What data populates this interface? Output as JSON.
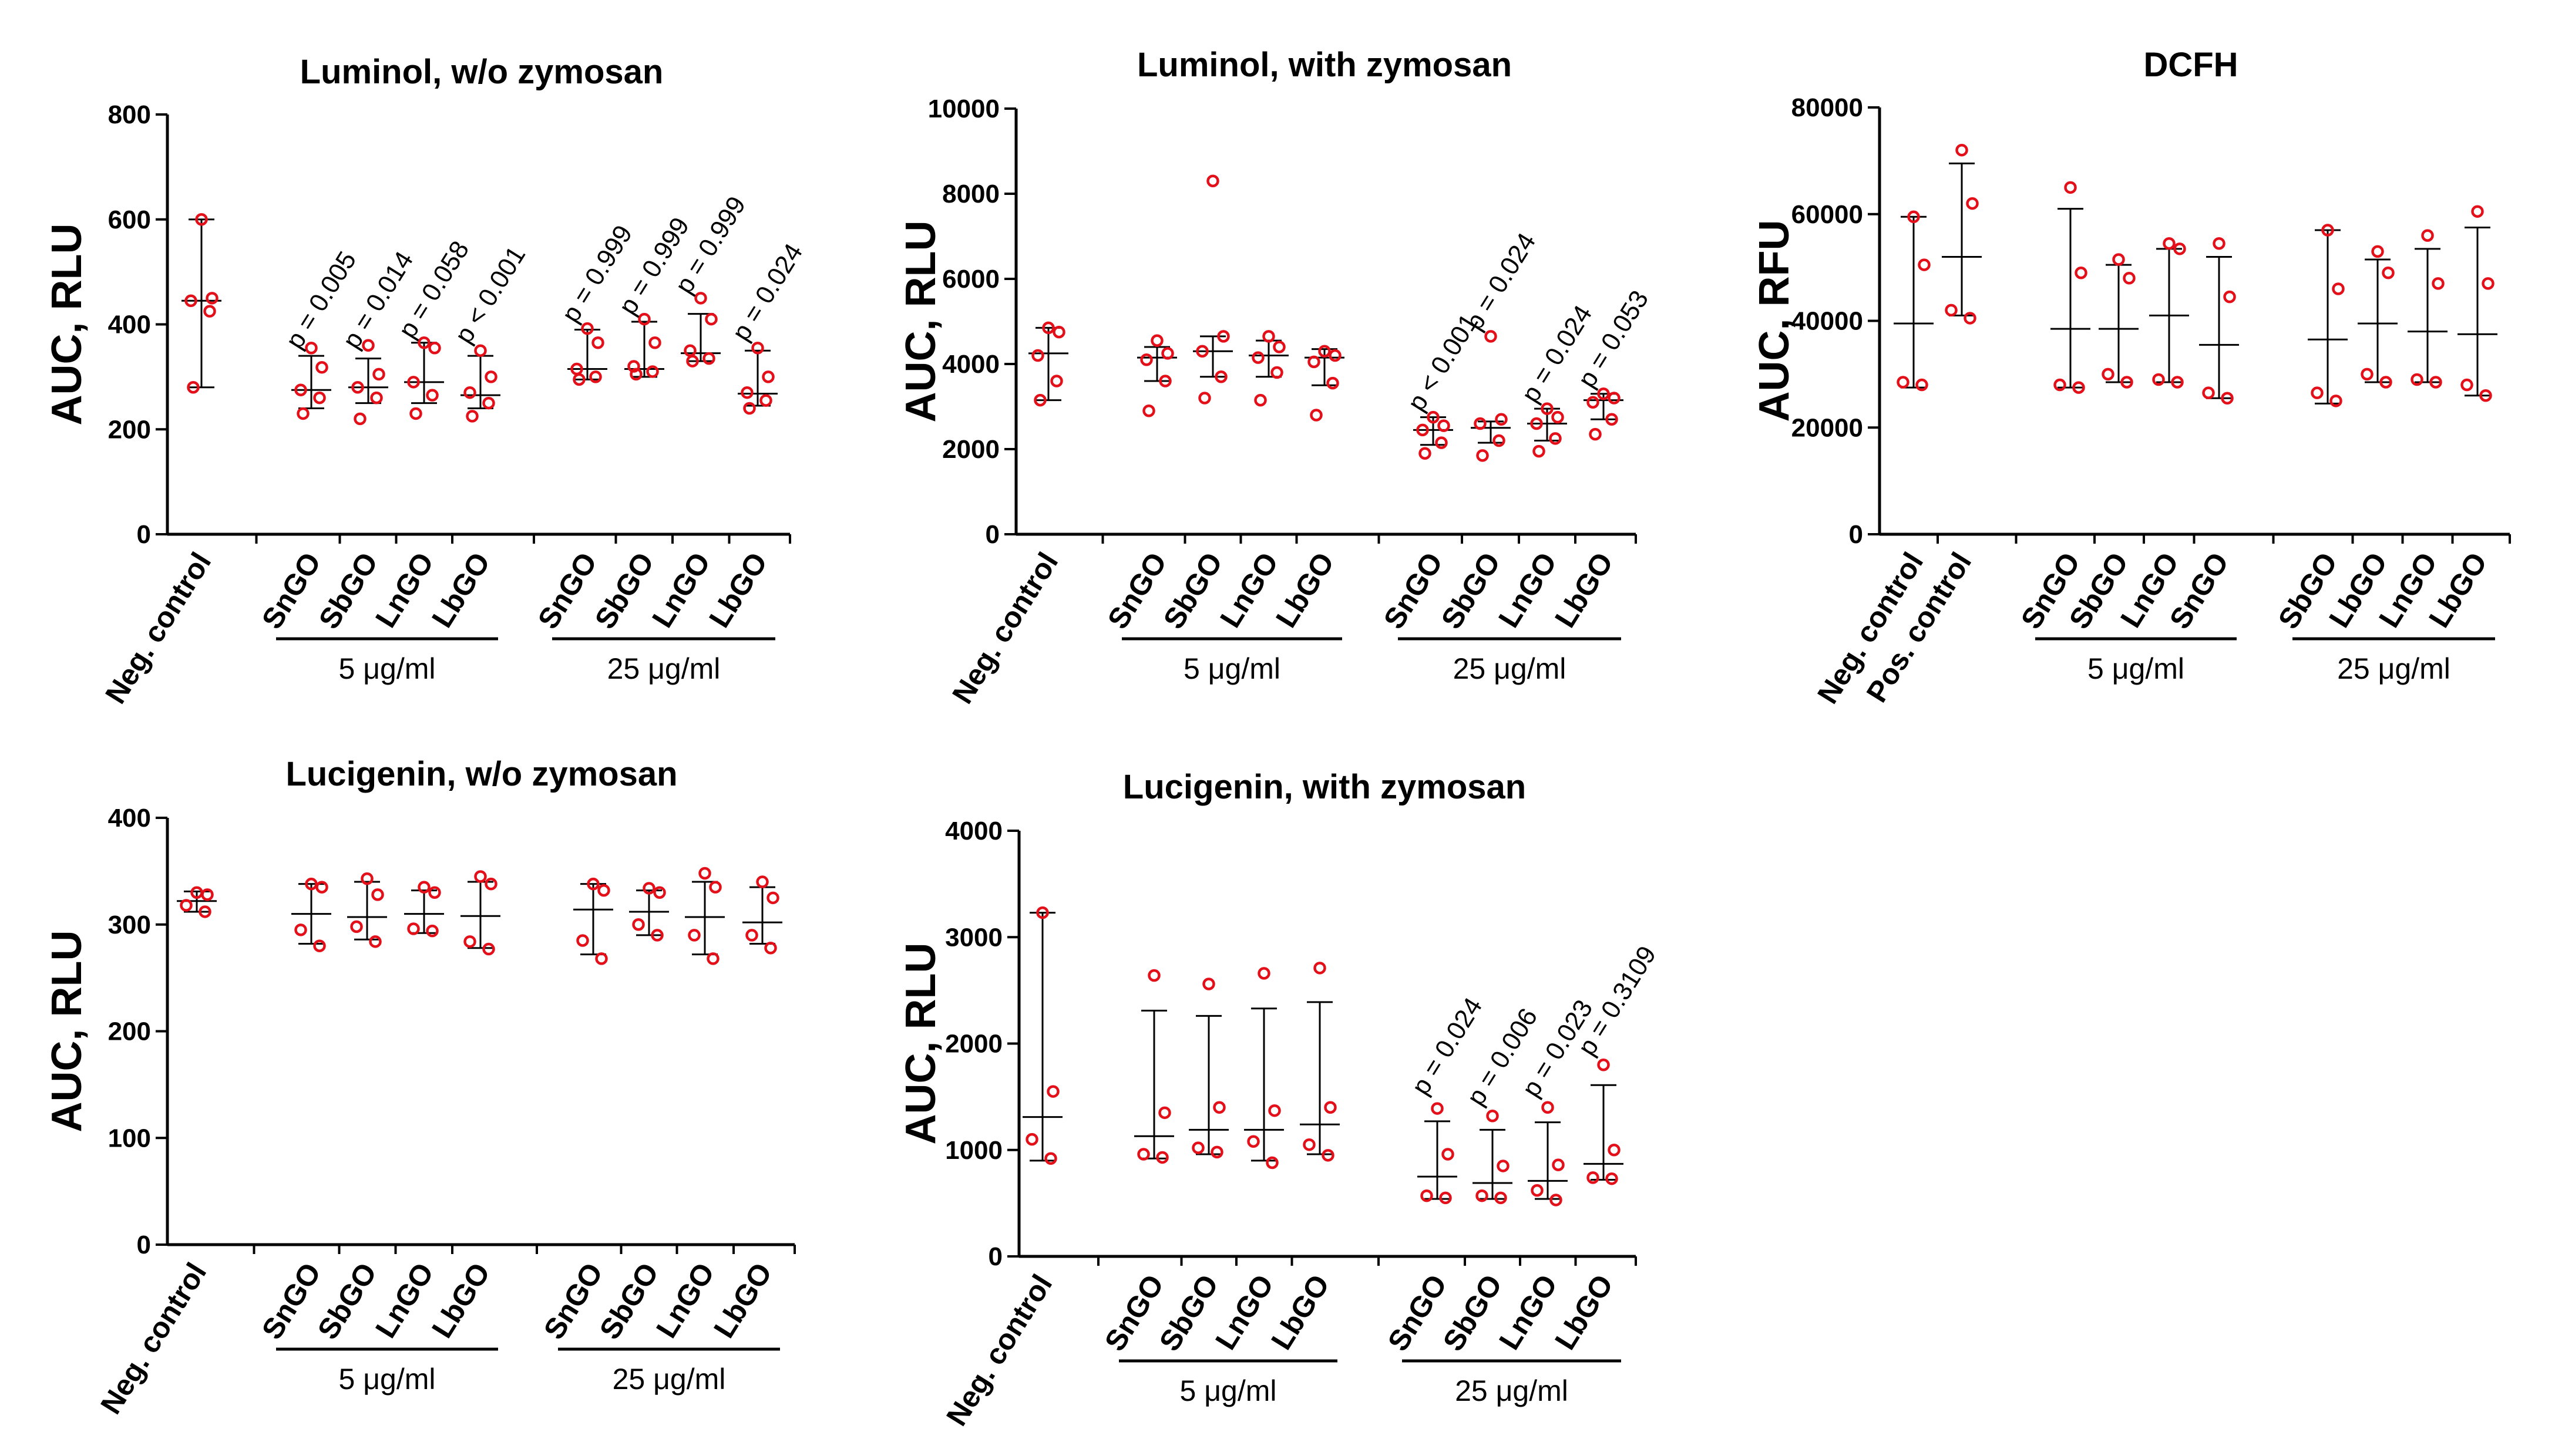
{
  "figure": {
    "group_labels": [
      "5 μg/ml",
      "25 μg/ml"
    ]
  },
  "chart_data": [
    {
      "id": "luminol_wo",
      "type": "scatter",
      "title": "Luminol, w/o zymosan",
      "ylabel": "AUC, RLU",
      "ylim": [
        0,
        800
      ],
      "yticks": [
        "0",
        "200",
        "400",
        "600",
        "800"
      ],
      "categories": [
        "Neg. control",
        "SnGO",
        "SbGO",
        "LnGO",
        "LbGO",
        "SnGO",
        "SbGO",
        "LnGO",
        "LbGO"
      ],
      "groups": [
        {
          "label": "5 μg/ml",
          "from": 1,
          "to": 4
        },
        {
          "label": "25 μg/ml",
          "from": 5,
          "to": 8
        }
      ],
      "series": [
        {
          "name": "Neg. control",
          "points": [
            600,
            450,
            445,
            425,
            280
          ],
          "median": 445,
          "low": 280,
          "high": 600
        },
        {
          "name": "SnGO 5",
          "points": [
            355,
            318,
            275,
            260,
            230
          ],
          "median": 275,
          "low": 240,
          "high": 340
        },
        {
          "name": "SbGO 5",
          "points": [
            360,
            305,
            280,
            260,
            220
          ],
          "median": 280,
          "low": 250,
          "high": 335
        },
        {
          "name": "LnGO 5",
          "points": [
            365,
            355,
            290,
            265,
            230
          ],
          "median": 290,
          "low": 250,
          "high": 365
        },
        {
          "name": "LbGO 5",
          "points": [
            350,
            300,
            270,
            250,
            225
          ],
          "median": 265,
          "low": 240,
          "high": 340
        },
        {
          "name": "SnGO 25",
          "points": [
            392,
            365,
            315,
            300,
            295
          ],
          "median": 315,
          "low": 295,
          "high": 390
        },
        {
          "name": "SbGO 25",
          "points": [
            410,
            365,
            320,
            310,
            305
          ],
          "median": 315,
          "low": 300,
          "high": 405
        },
        {
          "name": "LnGO 25",
          "points": [
            450,
            410,
            350,
            335,
            330
          ],
          "median": 345,
          "low": 330,
          "high": 420
        },
        {
          "name": "LbGO 25",
          "points": [
            355,
            300,
            270,
            255,
            240
          ],
          "median": 268,
          "low": 245,
          "high": 350
        }
      ],
      "annotations": [
        {
          "category": 1,
          "text": "p = 0.005",
          "y": 350
        },
        {
          "category": 2,
          "text": "p = 0.014",
          "y": 350
        },
        {
          "category": 3,
          "text": "p = 0.058",
          "y": 370
        },
        {
          "category": 4,
          "text": "p < 0.001",
          "y": 360
        },
        {
          "category": 5,
          "text": "p = 0.999",
          "y": 400
        },
        {
          "category": 6,
          "text": "p = 0.999",
          "y": 415
        },
        {
          "category": 7,
          "text": "p = 0.999",
          "y": 455
        },
        {
          "category": 8,
          "text": "p = 0.024",
          "y": 365
        }
      ]
    },
    {
      "id": "luminol_with",
      "type": "scatter",
      "title": "Luminol, with zymosan",
      "ylabel": "AUC, RLU",
      "ylim": [
        0,
        10000
      ],
      "yticks": [
        "0",
        "2000",
        "4000",
        "6000",
        "8000",
        "10000"
      ],
      "categories": [
        "Neg. control",
        "SnGO",
        "SbGO",
        "LnGO",
        "LbGO",
        "SnGO",
        "SbGO",
        "LnGO",
        "LbGO"
      ],
      "groups": [
        {
          "label": "5 μg/ml",
          "from": 1,
          "to": 4
        },
        {
          "label": "25 μg/ml",
          "from": 5,
          "to": 8
        }
      ],
      "series": [
        {
          "name": "Neg. control",
          "points": [
            4850,
            4750,
            4200,
            3600,
            3150
          ],
          "median": 4250,
          "low": 3150,
          "high": 4850
        },
        {
          "name": "SnGO 5",
          "points": [
            4550,
            4250,
            4100,
            3600,
            2900
          ],
          "median": 4150,
          "low": 3600,
          "high": 4400
        },
        {
          "name": "SbGO 5",
          "points": [
            8300,
            4650,
            4300,
            3700,
            3200
          ],
          "median": 4300,
          "low": 3700,
          "high": 4650
        },
        {
          "name": "LnGO 5",
          "points": [
            4650,
            4400,
            4150,
            3800,
            3150
          ],
          "median": 4200,
          "low": 3700,
          "high": 4550
        },
        {
          "name": "LbGO 5",
          "points": [
            4300,
            4200,
            4050,
            3550,
            2800
          ],
          "median": 4150,
          "low": 3500,
          "high": 4350
        },
        {
          "name": "SnGO 25",
          "points": [
            2750,
            2550,
            2450,
            2150,
            1900
          ],
          "median": 2450,
          "low": 2100,
          "high": 2750
        },
        {
          "name": "SbGO 25",
          "points": [
            4650,
            2700,
            2600,
            2200,
            1850
          ],
          "median": 2500,
          "low": 2150,
          "high": 2650
        },
        {
          "name": "LnGO 25",
          "points": [
            2950,
            2750,
            2600,
            2250,
            1950
          ],
          "median": 2600,
          "low": 2200,
          "high": 2950
        },
        {
          "name": "LbGO 25",
          "points": [
            3300,
            3200,
            3100,
            2700,
            2350
          ],
          "median": 3150,
          "low": 2700,
          "high": 3300
        }
      ],
      "annotations": [
        {
          "category": 5,
          "text": "p < 0.001",
          "y": 2850
        },
        {
          "category": 6,
          "text": "p = 0.024",
          "y": 4750
        },
        {
          "category": 7,
          "text": "p = 0.024",
          "y": 3050
        },
        {
          "category": 8,
          "text": "p = 0.053",
          "y": 3400
        }
      ]
    },
    {
      "id": "dcfh",
      "type": "scatter",
      "title": "DCFH",
      "ylabel": "AUC, RFU",
      "ylim": [
        0,
        80000
      ],
      "yticks": [
        "0",
        "20000",
        "40000",
        "60000",
        "80000"
      ],
      "categories": [
        "Neg. control",
        "Pos. control",
        "SnGO",
        "SbGO",
        "LnGO",
        "SnGO",
        "SbGO",
        "LbGO",
        "LnGO",
        "LbGO"
      ],
      "groups": [
        {
          "label": "5 μg/ml",
          "from": 2,
          "to": 5
        },
        {
          "label": "25 μg/ml",
          "from": 6,
          "to": 9
        }
      ],
      "series": [
        {
          "name": "Neg. control",
          "points": [
            59500,
            50500,
            28500,
            28000
          ],
          "median": 39500,
          "low": 27500,
          "high": 59500
        },
        {
          "name": "Pos. control",
          "points": [
            72000,
            62000,
            42000,
            40500
          ],
          "median": 52000,
          "low": 41000,
          "high": 69500
        },
        {
          "name": "SnGO 5",
          "points": [
            65000,
            49000,
            28000,
            27500
          ],
          "median": 38500,
          "low": 27500,
          "high": 61000
        },
        {
          "name": "SbGO 5",
          "points": [
            51500,
            48000,
            30000,
            28500
          ],
          "median": 38500,
          "low": 28500,
          "high": 50500
        },
        {
          "name": "LnGO 5",
          "points": [
            54500,
            53500,
            29000,
            28500
          ],
          "median": 41000,
          "low": 28500,
          "high": 53500
        },
        {
          "name": "SnGO 5b",
          "points": [
            54500,
            44500,
            26500,
            25500
          ],
          "median": 35500,
          "low": 25500,
          "high": 52000
        },
        {
          "name": "SbGO 25",
          "points": [
            57000,
            46000,
            26500,
            25000
          ],
          "median": 36500,
          "low": 24500,
          "high": 57000
        },
        {
          "name": "LbGO 25",
          "points": [
            53000,
            49000,
            30000,
            28500
          ],
          "median": 39500,
          "low": 28500,
          "high": 51500
        },
        {
          "name": "LnGO 25",
          "points": [
            56000,
            47000,
            29000,
            28500
          ],
          "median": 38000,
          "low": 28500,
          "high": 53500
        },
        {
          "name": "LbGO 25b",
          "points": [
            60500,
            47000,
            28000,
            26000
          ],
          "median": 37500,
          "low": 26000,
          "high": 57500
        }
      ],
      "annotations": []
    },
    {
      "id": "lucigenin_wo",
      "type": "scatter",
      "title": "Lucigenin, w/o zymosan",
      "ylabel": "AUC, RLU",
      "ylim": [
        0,
        400
      ],
      "yticks": [
        "0",
        "100",
        "200",
        "300",
        "400"
      ],
      "categories": [
        "Neg. control",
        "SnGO",
        "SbGO",
        "LnGO",
        "LbGO",
        "SnGO",
        "SbGO",
        "LnGO",
        "LbGO"
      ],
      "groups": [
        {
          "label": "5 μg/ml",
          "from": 1,
          "to": 4
        },
        {
          "label": "25 μg/ml",
          "from": 5,
          "to": 8
        }
      ],
      "series": [
        {
          "name": "Neg. control",
          "points": [
            330,
            328,
            318,
            312
          ],
          "median": 322,
          "low": 312,
          "high": 331
        },
        {
          "name": "SnGO 5",
          "points": [
            338,
            335,
            295,
            280
          ],
          "median": 310,
          "low": 282,
          "high": 338
        },
        {
          "name": "SbGO 5",
          "points": [
            343,
            328,
            298,
            284
          ],
          "median": 307,
          "low": 286,
          "high": 340
        },
        {
          "name": "LnGO 5",
          "points": [
            335,
            330,
            296,
            294
          ],
          "median": 310,
          "low": 292,
          "high": 332
        },
        {
          "name": "LbGO 5",
          "points": [
            345,
            338,
            284,
            277
          ],
          "median": 308,
          "low": 278,
          "high": 340
        },
        {
          "name": "SnGO 25",
          "points": [
            338,
            332,
            285,
            268
          ],
          "median": 314,
          "low": 272,
          "high": 338
        },
        {
          "name": "SbGO 25",
          "points": [
            334,
            330,
            300,
            290
          ],
          "median": 312,
          "low": 290,
          "high": 332
        },
        {
          "name": "LnGO 25",
          "points": [
            348,
            335,
            290,
            268
          ],
          "median": 307,
          "low": 272,
          "high": 340
        },
        {
          "name": "LbGO 25",
          "points": [
            340,
            325,
            290,
            278
          ],
          "median": 302,
          "low": 282,
          "high": 335
        }
      ],
      "annotations": []
    },
    {
      "id": "lucigenin_with",
      "type": "scatter",
      "title": "Lucigenin, with zymosan",
      "ylabel": "AUC, RLU",
      "ylim": [
        0,
        4000
      ],
      "yticks": [
        "0",
        "1000",
        "2000",
        "3000",
        "4000"
      ],
      "categories": [
        "Neg. control",
        "SnGO",
        "SbGO",
        "LnGO",
        "LbGO",
        "SnGO",
        "SbGO",
        "LnGO",
        "LbGO"
      ],
      "groups": [
        {
          "label": "5 μg/ml",
          "from": 1,
          "to": 4
        },
        {
          "label": "25 μg/ml",
          "from": 5,
          "to": 8
        }
      ],
      "series": [
        {
          "name": "Neg. control",
          "points": [
            3230,
            1550,
            1100,
            920
          ],
          "median": 1310,
          "low": 900,
          "high": 3230
        },
        {
          "name": "SnGO 5",
          "points": [
            2640,
            1350,
            960,
            930
          ],
          "median": 1130,
          "low": 920,
          "high": 2310
        },
        {
          "name": "SbGO 5",
          "points": [
            2560,
            1400,
            1020,
            980
          ],
          "median": 1190,
          "low": 960,
          "high": 2260
        },
        {
          "name": "LnGO 5",
          "points": [
            2660,
            1370,
            1080,
            880
          ],
          "median": 1190,
          "low": 900,
          "high": 2330
        },
        {
          "name": "LbGO 5",
          "points": [
            2710,
            1400,
            1050,
            950
          ],
          "median": 1240,
          "low": 960,
          "high": 2390
        },
        {
          "name": "SnGO 25",
          "points": [
            1390,
            960,
            570,
            550
          ],
          "median": 750,
          "low": 540,
          "high": 1270
        },
        {
          "name": "SbGO 25",
          "points": [
            1320,
            850,
            570,
            550
          ],
          "median": 690,
          "low": 540,
          "high": 1190
        },
        {
          "name": "LnGO 25",
          "points": [
            1400,
            860,
            620,
            530
          ],
          "median": 710,
          "low": 540,
          "high": 1260
        },
        {
          "name": "LbGO 25",
          "points": [
            1800,
            1000,
            740,
            730
          ],
          "median": 870,
          "low": 720,
          "high": 1610
        }
      ],
      "annotations": [
        {
          "category": 5,
          "text": "p = 0.024",
          "y": 1500
        },
        {
          "category": 6,
          "text": "p = 0.006",
          "y": 1400
        },
        {
          "category": 7,
          "text": "p = 0.023",
          "y": 1480
        },
        {
          "category": 8,
          "text": "p = 0.3109",
          "y": 1870
        }
      ]
    }
  ]
}
